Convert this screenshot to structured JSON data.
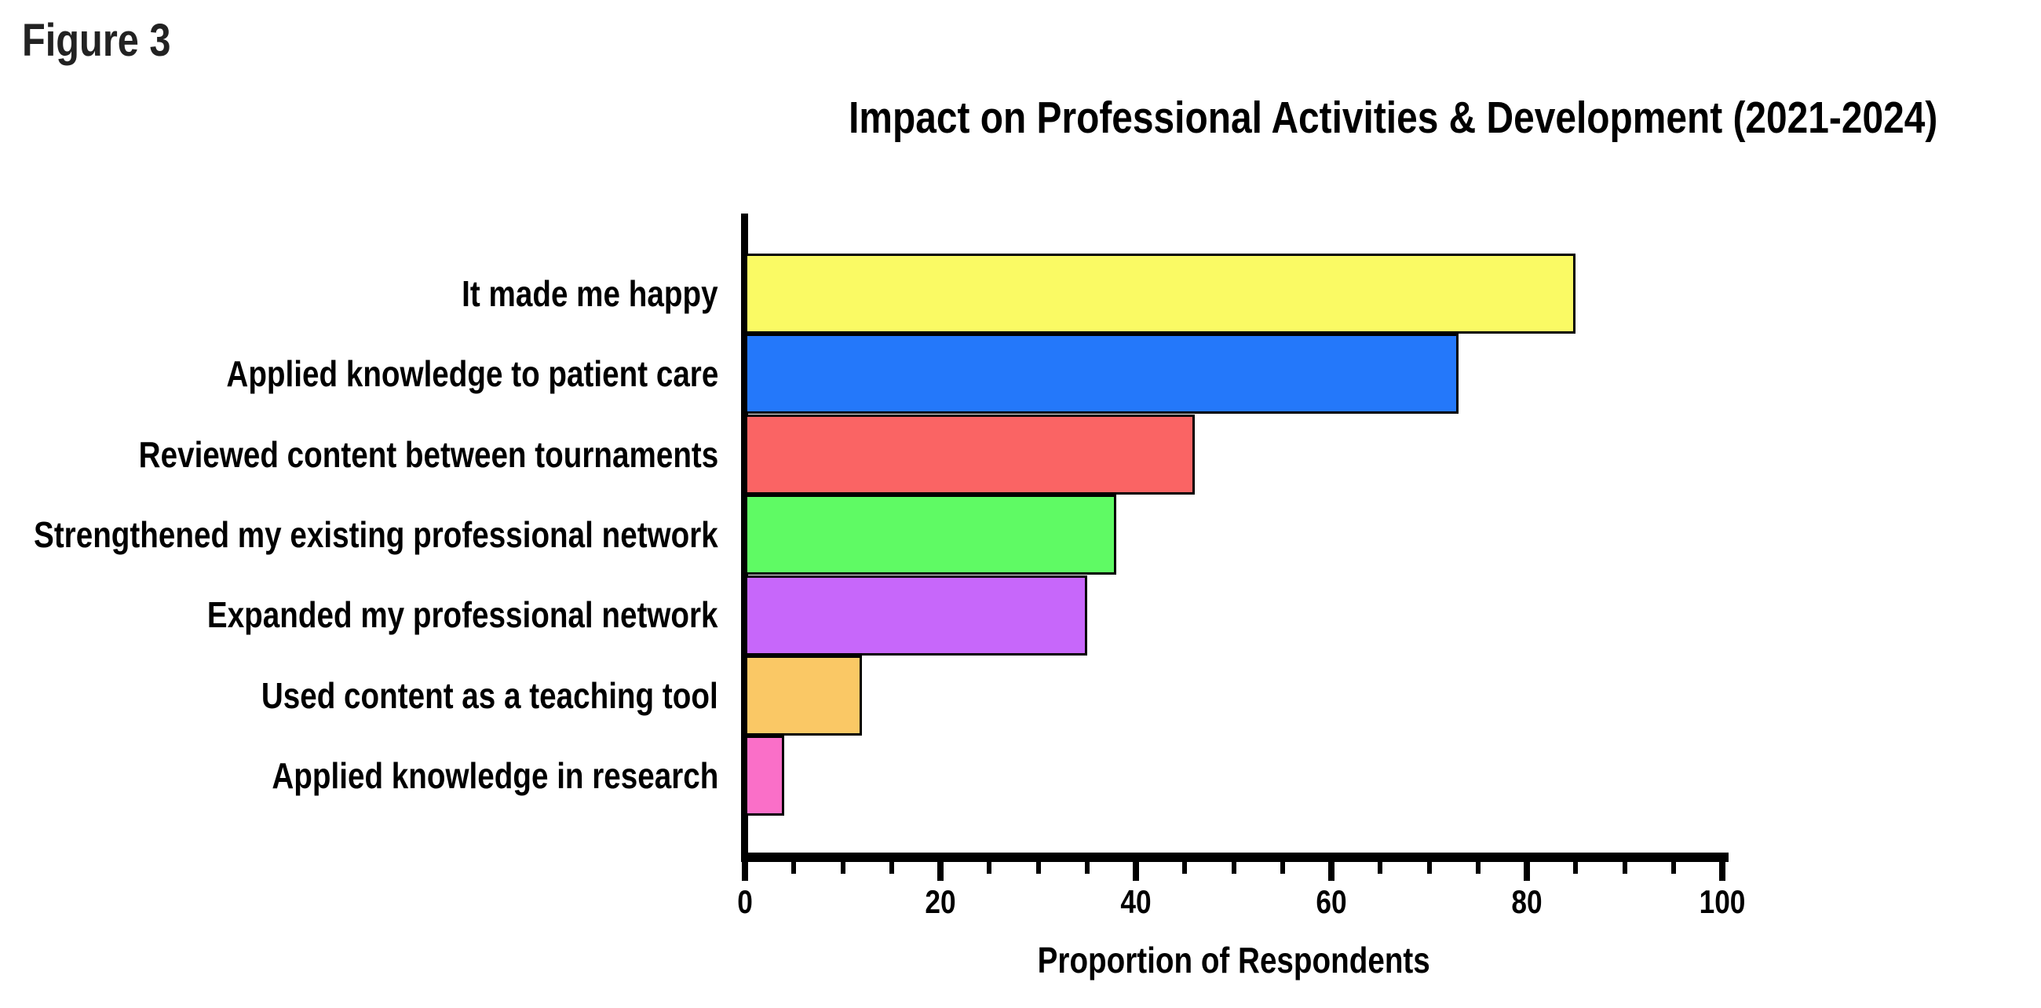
{
  "figure_label": "Figure 3",
  "chart_data": {
    "type": "bar",
    "orientation": "horizontal",
    "title": "Impact on Professional Activities & Development (2021-2024)",
    "xlabel": "Proportion of Respondents",
    "xlim": [
      0,
      100
    ],
    "x_major_ticks": [
      0,
      20,
      40,
      60,
      80,
      100
    ],
    "x_minor_tick_step": 5,
    "grid": false,
    "legend": false,
    "background": "#FFFFFF",
    "axis_color": "#000000",
    "bar_border_color": "#000000",
    "categories": [
      "It made me happy",
      "Applied knowledge to patient care",
      "Reviewed content between tournaments",
      "Strengthened my existing professional network",
      "Expanded my professional network",
      "Used content as a teaching tool",
      "Applied knowledge in research"
    ],
    "values": [
      85,
      73,
      46,
      38,
      35,
      12,
      4
    ],
    "bar_colors": [
      "#FAFA64",
      "#2478FA",
      "#FA6464",
      "#5FFA64",
      "#C767FA",
      "#FAC865",
      "#FA6FC8"
    ]
  }
}
